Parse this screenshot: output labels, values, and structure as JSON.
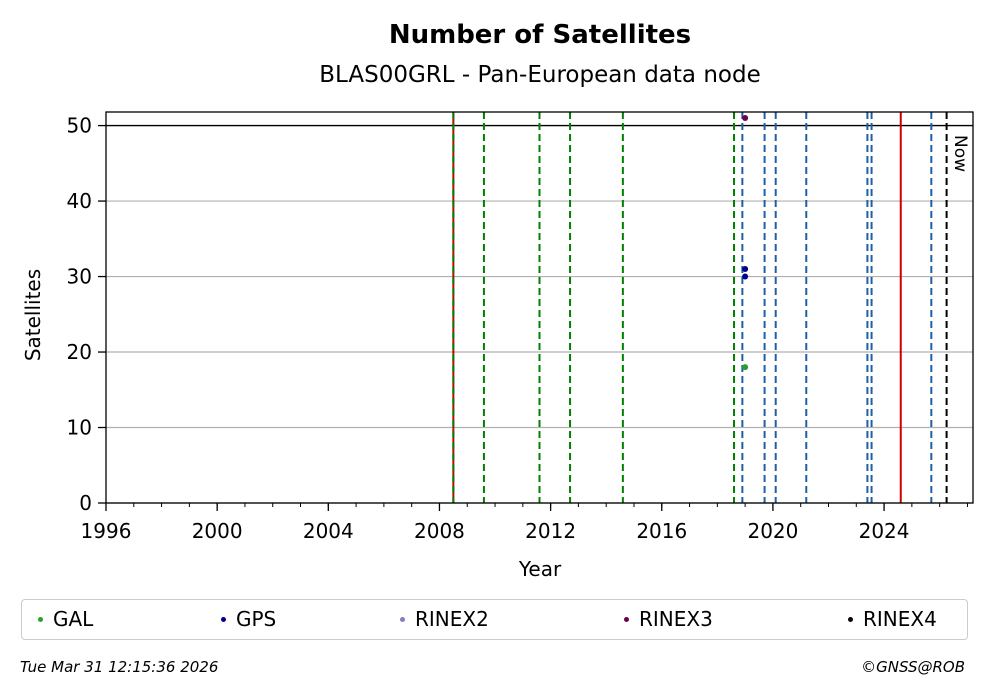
{
  "chart_data": {
    "type": "scatter",
    "title": "Number of Satellites",
    "subtitle": "BLAS00GRL - Pan-European data node",
    "xlabel": "Year",
    "ylabel": "Satellites",
    "xlim": [
      1996,
      2027.2
    ],
    "ylim": [
      0,
      51.8
    ],
    "x_ticks": [
      1996,
      2000,
      2004,
      2008,
      2012,
      2016,
      2020,
      2024
    ],
    "y_ticks": [
      0,
      10,
      20,
      30,
      40,
      50
    ],
    "grid": "y",
    "reference_line": 50,
    "series": [
      {
        "name": "GAL",
        "color": "#2ca02c",
        "points": [
          [
            2019.0,
            18
          ]
        ]
      },
      {
        "name": "GPS",
        "color": "#00008b",
        "points": [
          [
            2019.0,
            31
          ],
          [
            2019.0,
            30
          ]
        ]
      },
      {
        "name": "RINEX2",
        "color": "#8080c0",
        "points": []
      },
      {
        "name": "RINEX3",
        "color": "#6a0050",
        "points": [
          [
            2019.0,
            51
          ]
        ]
      },
      {
        "name": "RINEX4",
        "color": "#100010",
        "points": []
      }
    ],
    "vertical_lines": [
      {
        "x": 2008.5,
        "color": "#cc0000",
        "style": "solid"
      },
      {
        "x": 2008.5,
        "color": "#008000",
        "style": "dashed"
      },
      {
        "x": 2009.6,
        "color": "#008000",
        "style": "dashed"
      },
      {
        "x": 2011.6,
        "color": "#008000",
        "style": "dashed"
      },
      {
        "x": 2012.7,
        "color": "#008000",
        "style": "dashed"
      },
      {
        "x": 2014.6,
        "color": "#008000",
        "style": "dashed"
      },
      {
        "x": 2018.6,
        "color": "#008000",
        "style": "dashed"
      },
      {
        "x": 2018.9,
        "color": "#1f5fa8",
        "style": "dashed"
      },
      {
        "x": 2019.7,
        "color": "#1f5fa8",
        "style": "dashed"
      },
      {
        "x": 2020.1,
        "color": "#1f5fa8",
        "style": "dashed"
      },
      {
        "x": 2021.2,
        "color": "#1f5fa8",
        "style": "dashed"
      },
      {
        "x": 2023.4,
        "color": "#1f5fa8",
        "style": "dashed"
      },
      {
        "x": 2023.55,
        "color": "#1f5fa8",
        "style": "dashed"
      },
      {
        "x": 2024.6,
        "color": "#cc0000",
        "style": "solid"
      },
      {
        "x": 2025.7,
        "color": "#1f5fa8",
        "style": "dashed"
      },
      {
        "x": 2026.25,
        "color": "#000000",
        "style": "dashed"
      }
    ],
    "now_label": "Now",
    "legend_position": "bottom"
  },
  "footer": {
    "timestamp": "Tue Mar 31 12:15:36 2026",
    "credit": "©GNSS@ROB"
  }
}
